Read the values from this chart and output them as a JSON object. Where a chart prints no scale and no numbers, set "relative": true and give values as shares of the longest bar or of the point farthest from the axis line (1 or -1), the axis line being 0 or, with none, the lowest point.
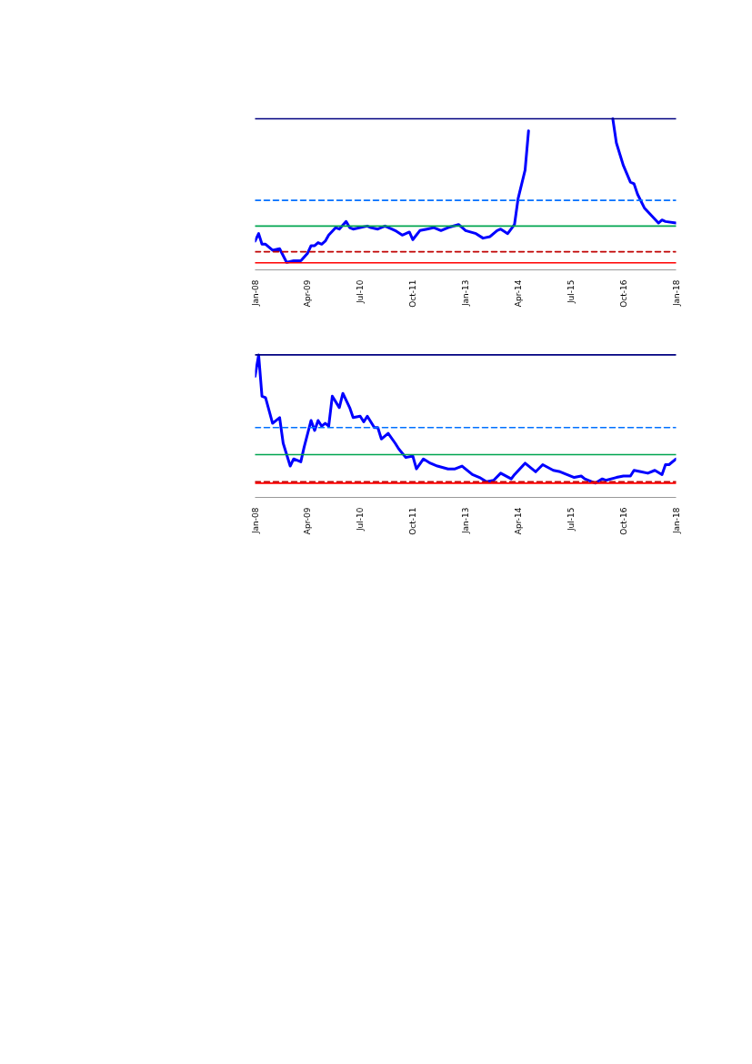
{
  "chart_data": [
    {
      "type": "line",
      "relative": true,
      "grid": false,
      "xlim": [
        "2008-01",
        "2018-01"
      ],
      "xticks": [
        {
          "value": "2008-01",
          "label": "Jan-08"
        },
        {
          "value": "2009-04",
          "label": "Apr-09"
        },
        {
          "value": "2010-07",
          "label": "Jul-10"
        },
        {
          "value": "2011-10",
          "label": "Oct-11"
        },
        {
          "value": "2013-01",
          "label": "Jan-13"
        },
        {
          "value": "2014-04",
          "label": "Apr-14"
        },
        {
          "value": "2015-07",
          "label": "Jul-15"
        },
        {
          "value": "2016-10",
          "label": "Oct-16"
        },
        {
          "value": "2018-01",
          "label": "Jan-18"
        }
      ],
      "x": [
        "2008-01",
        "2008-02",
        "2008-03",
        "2008-04",
        "2008-06",
        "2008-08",
        "2008-10",
        "2008-12",
        "2009-02",
        "2009-04",
        "2009-05",
        "2009-06",
        "2009-07",
        "2009-08",
        "2009-09",
        "2009-10",
        "2009-12",
        "2010-01",
        "2010-03",
        "2010-04",
        "2010-05",
        "2010-07",
        "2010-09",
        "2010-10",
        "2010-12",
        "2011-02",
        "2011-04",
        "2011-05",
        "2011-07",
        "2011-09",
        "2011-10",
        "2011-12",
        "2012-02",
        "2012-04",
        "2012-06",
        "2012-08",
        "2012-11",
        "2013-01",
        "2013-04",
        "2013-06",
        "2013-08",
        "2013-10",
        "2013-11",
        "2014-01",
        "2014-03",
        "2014-04",
        "2014-06",
        "2014-07",
        "2015-06",
        "2016-07",
        "2016-08",
        "2016-10",
        "2016-12",
        "2017-01",
        "2017-02",
        "2017-04",
        "2017-06",
        "2017-08",
        "2017-09",
        "2017-10",
        "2018-01"
      ],
      "series": [
        {
          "color": "#0000ff",
          "line_style": "solid",
          "values": [
            0.19,
            0.24,
            0.17,
            0.17,
            0.13,
            0.14,
            0.05,
            0.06,
            0.06,
            0.11,
            0.16,
            0.16,
            0.18,
            0.17,
            0.19,
            0.23,
            0.28,
            0.27,
            0.32,
            0.28,
            0.27,
            0.28,
            0.29,
            0.28,
            0.27,
            0.29,
            0.27,
            0.26,
            0.23,
            0.25,
            0.2,
            0.26,
            0.27,
            0.28,
            0.26,
            0.28,
            0.3,
            0.26,
            0.24,
            0.21,
            0.22,
            0.26,
            0.27,
            0.24,
            0.3,
            0.47,
            0.66,
            0.92,
            null,
            1.0,
            0.84,
            0.69,
            0.58,
            0.57,
            0.5,
            0.41,
            0.36,
            0.31,
            0.33,
            0.32,
            0.31
          ]
        },
        {
          "color": "#00a550",
          "line_style": "solid",
          "x": [
            "2008-01",
            "2018-01"
          ],
          "values": [
            0.29,
            0.29
          ]
        },
        {
          "color": "#000080",
          "line_style": "solid",
          "x": [
            "2008-01",
            "2018-01"
          ],
          "values": [
            1.0,
            1.0
          ]
        },
        {
          "color": "#ff0000",
          "line_style": "solid",
          "x": [
            "2008-01",
            "2018-01"
          ],
          "values": [
            0.047,
            0.047
          ]
        },
        {
          "color": "#0070ff",
          "line_style": "dashed",
          "x": [
            "2008-01",
            "2018-01"
          ],
          "values": [
            0.46,
            0.46
          ]
        },
        {
          "color": "#c00000",
          "line_style": "dashed",
          "x": [
            "2008-01",
            "2018-01"
          ],
          "values": [
            0.12,
            0.12
          ]
        }
      ]
    },
    {
      "type": "line",
      "relative": true,
      "grid": false,
      "xlim": [
        "2008-01",
        "2018-01"
      ],
      "xticks": [
        {
          "value": "2008-01",
          "label": "Jan-08"
        },
        {
          "value": "2009-04",
          "label": "Apr-09"
        },
        {
          "value": "2010-07",
          "label": "Jul-10"
        },
        {
          "value": "2011-10",
          "label": "Oct-11"
        },
        {
          "value": "2013-01",
          "label": "Jan-13"
        },
        {
          "value": "2014-04",
          "label": "Apr-14"
        },
        {
          "value": "2015-07",
          "label": "Jul-15"
        },
        {
          "value": "2016-10",
          "label": "Oct-16"
        },
        {
          "value": "2018-01",
          "label": "Jan-18"
        }
      ],
      "x": [
        "2008-01",
        "2008-02",
        "2008-03",
        "2008-04",
        "2008-06",
        "2008-08",
        "2008-09",
        "2008-11",
        "2008-12",
        "2009-02",
        "2009-03",
        "2009-05",
        "2009-06",
        "2009-07",
        "2009-08",
        "2009-09",
        "2009-10",
        "2009-11",
        "2010-01",
        "2010-02",
        "2010-04",
        "2010-05",
        "2010-07",
        "2010-08",
        "2010-09",
        "2010-11",
        "2010-12",
        "2011-01",
        "2011-03",
        "2011-05",
        "2011-06",
        "2011-08",
        "2011-10",
        "2011-11",
        "2012-01",
        "2012-03",
        "2012-05",
        "2012-08",
        "2012-09",
        "2012-10",
        "2012-12",
        "2013-03",
        "2013-05",
        "2013-07",
        "2013-09",
        "2013-11",
        "2014-02",
        "2014-03",
        "2014-06",
        "2014-09",
        "2014-11",
        "2015-02",
        "2015-04",
        "2015-08",
        "2015-10",
        "2015-11",
        "2016-02",
        "2016-04",
        "2016-05",
        "2016-08",
        "2016-10",
        "2016-12",
        "2017-01",
        "2017-03",
        "2017-05",
        "2017-07",
        "2017-09",
        "2017-10",
        "2017-11",
        "2018-01"
      ],
      "series": [
        {
          "color": "#0000ff",
          "line_style": "solid",
          "values": [
            0.85,
            1.0,
            0.71,
            0.7,
            0.52,
            0.56,
            0.38,
            0.22,
            0.27,
            0.25,
            0.35,
            0.54,
            0.47,
            0.54,
            0.5,
            0.52,
            0.5,
            0.71,
            0.63,
            0.73,
            0.63,
            0.56,
            0.57,
            0.53,
            0.57,
            0.49,
            0.49,
            0.41,
            0.45,
            0.38,
            0.34,
            0.28,
            0.29,
            0.2,
            0.27,
            0.24,
            0.22,
            0.2,
            0.2,
            0.2,
            0.22,
            0.16,
            0.14,
            0.11,
            0.12,
            0.17,
            0.13,
            0.16,
            0.24,
            0.18,
            0.23,
            0.19,
            0.18,
            0.14,
            0.15,
            0.13,
            0.1,
            0.13,
            0.12,
            0.14,
            0.15,
            0.15,
            0.19,
            0.18,
            0.17,
            0.19,
            0.16,
            0.23,
            0.23,
            0.27
          ]
        },
        {
          "color": "#00a550",
          "line_style": "solid",
          "x": [
            "2008-01",
            "2018-01"
          ],
          "values": [
            0.3,
            0.3
          ]
        },
        {
          "color": "#000080",
          "line_style": "solid",
          "x": [
            "2008-01",
            "2018-01"
          ],
          "values": [
            1.0,
            1.0
          ]
        },
        {
          "color": "#ff0000",
          "line_style": "solid",
          "x": [
            "2008-01",
            "2018-01"
          ],
          "values": [
            0.1,
            0.1
          ]
        },
        {
          "color": "#0070ff",
          "line_style": "dashed",
          "x": [
            "2008-01",
            "2018-01"
          ],
          "values": [
            0.49,
            0.49
          ]
        },
        {
          "color": "#c00000",
          "line_style": "dashed",
          "x": [
            "2008-01",
            "2018-01"
          ],
          "values": [
            0.11,
            0.11
          ]
        }
      ]
    }
  ]
}
